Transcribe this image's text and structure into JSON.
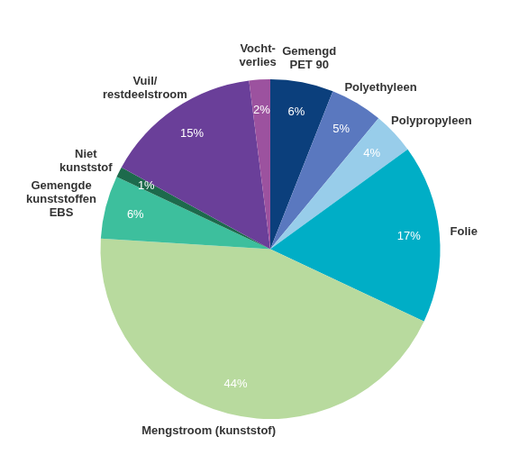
{
  "chart_data": {
    "type": "pie",
    "categories": [
      "Gemengd\nPET 90",
      "Polyethyleen",
      "Polypropyleen",
      "Folie",
      "Mengstroom (kunststof)",
      "Gemengde\nkunststoffen\nEBS",
      "Niet\nkunststof",
      "Vuil/\nrestdeelstroom",
      "Vocht-\nverlies"
    ],
    "values": [
      6,
      5,
      4,
      17,
      44,
      6,
      1,
      15,
      2
    ],
    "value_labels": [
      "6%",
      "5%",
      "4%",
      "17%",
      "44%",
      "6%",
      "1%",
      "15%",
      "2%"
    ],
    "colors": [
      "#0b3f7c",
      "#5a78bf",
      "#98cdea",
      "#00aec6",
      "#b8da9e",
      "#3dbf9d",
      "#1d6a4c",
      "#6a3f99",
      "#9c529f"
    ],
    "data_labels": true
  }
}
